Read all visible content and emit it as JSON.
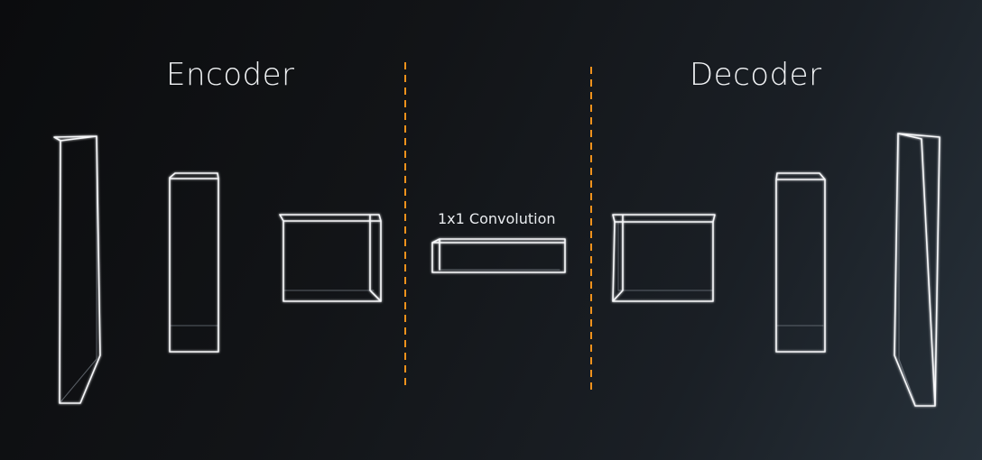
{
  "titles": {
    "encoder": "Encoder",
    "decoder": "Decoder"
  },
  "middle": {
    "label": "1x1 Convolution"
  },
  "colors": {
    "divider": "#f0921c",
    "wireframe": "#f7f8fa",
    "text": "#f2f4f6"
  }
}
